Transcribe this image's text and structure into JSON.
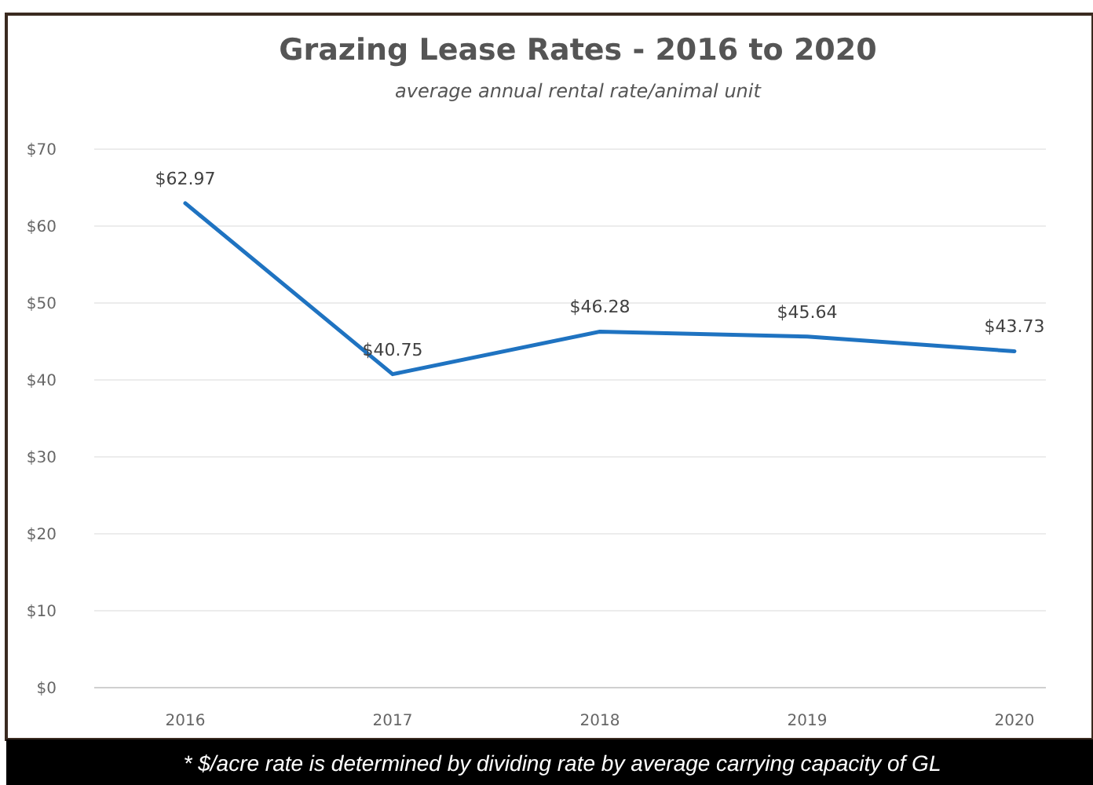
{
  "chart_data": {
    "type": "line",
    "title": "Grazing Lease Rates - 2016 to 2020",
    "subtitle": "average annual rental rate/animal unit",
    "categories": [
      "2016",
      "2017",
      "2018",
      "2019",
      "2020"
    ],
    "series": [
      {
        "color": "#1f73c1",
        "values": [
          62.97,
          40.75,
          46.28,
          45.64,
          43.73
        ],
        "value_labels": [
          "$62.97",
          "$40.75",
          "$46.28",
          "$45.64",
          "$43.73"
        ]
      }
    ],
    "ylim": [
      0,
      70
    ],
    "yticks": [
      {
        "value": 0,
        "label": "$0"
      },
      {
        "value": 10,
        "label": "$10"
      },
      {
        "value": 20,
        "label": "$20"
      },
      {
        "value": 30,
        "label": "$30"
      },
      {
        "value": 40,
        "label": "$40"
      },
      {
        "value": 50,
        "label": "$50"
      },
      {
        "value": 60,
        "label": "$60"
      },
      {
        "value": 70,
        "label": "$70"
      }
    ],
    "grid": "y",
    "marker": "none",
    "line_style": "solid",
    "annotations": [
      "* $/acre rate is determined by dividing rate by average carrying capacity of GL"
    ]
  }
}
